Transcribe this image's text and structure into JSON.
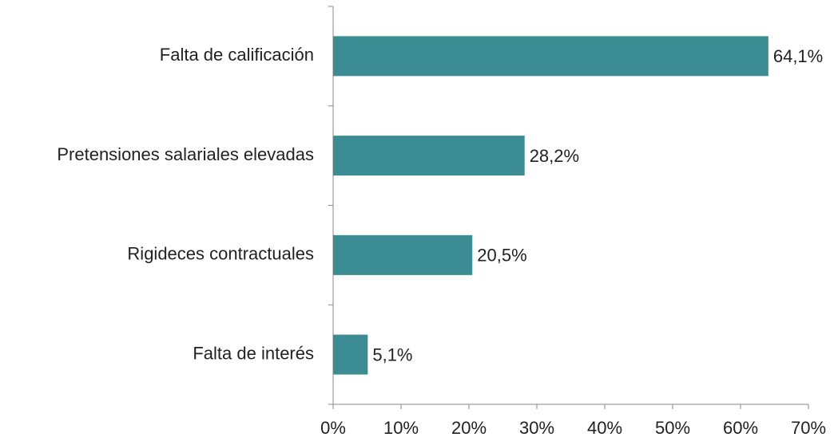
{
  "chart_data": {
    "type": "barh",
    "categories": [
      "Falta de calificación",
      "Pretensiones salariales elevadas",
      "Rigideces contractuales",
      "Falta de interés"
    ],
    "values": [
      64.1,
      28.2,
      20.5,
      5.1
    ],
    "value_labels": [
      "64,1%",
      "28,2%",
      "20,5%",
      "5,1%"
    ],
    "color": "#3b8c93",
    "xlim": [
      0,
      70
    ],
    "xticks": [
      {
        "value": 0,
        "label": "0%"
      },
      {
        "value": 10,
        "label": "10%"
      },
      {
        "value": 20,
        "label": "20%"
      },
      {
        "value": 30,
        "label": "30%"
      },
      {
        "value": 40,
        "label": "40%"
      },
      {
        "value": 50,
        "label": "50%"
      },
      {
        "value": 60,
        "label": "60%"
      },
      {
        "value": 70,
        "label": "70%"
      }
    ],
    "grid": false
  }
}
